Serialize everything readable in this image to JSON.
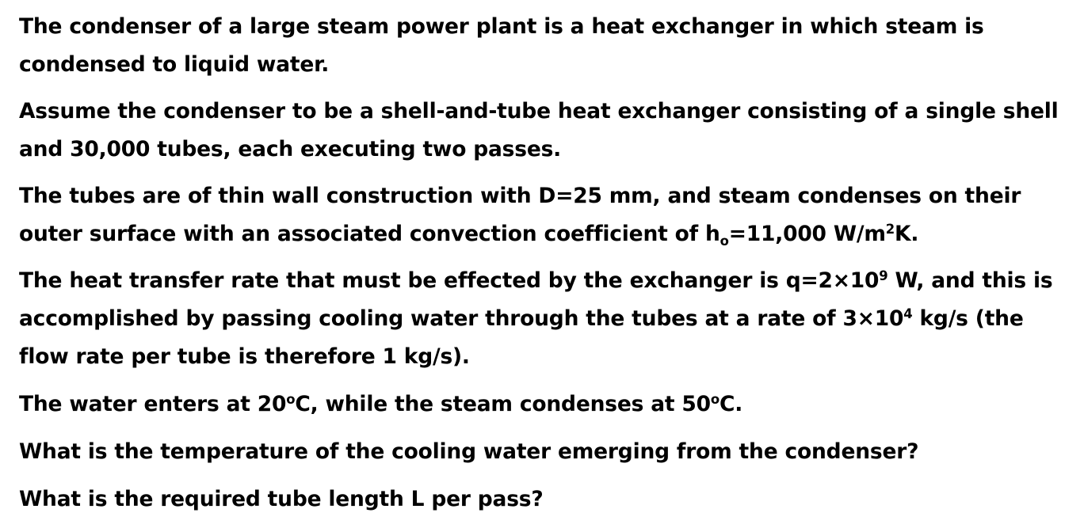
{
  "paragraphs": {
    "p1": "The condenser of a large steam power plant is a heat exchanger in which steam is condensed to liquid water.",
    "p2": "Assume the condenser to be a shell-and-tube heat exchanger consisting of a single shell and 30,000 tubes, each executing two passes.",
    "p3": {
      "part1": "The tubes are of thin wall construction with D=25 mm, and steam condenses on their outer surface with an associated convection coefficient of h",
      "sub1": "o",
      "part2": "=11,000 W/m",
      "sup1": "2",
      "part3": "K."
    },
    "p4": {
      "part1": "The heat transfer rate that must be effected by the exchanger is q=2×10",
      "sup1": "9",
      "part2": " W, and this is accomplished by passing cooling water through the tubes at a rate of 3×10",
      "sup2": "4",
      "part3": " kg/s (the flow rate per tube is therefore 1 kg/s)."
    },
    "p5": {
      "part1": "The water enters at 20",
      "sup1": "o",
      "part2": "C, while the steam condenses at 50",
      "sup2": "o",
      "part3": "C."
    },
    "p6": "What is the temperature of the cooling water emerging from the condenser?",
    "p7": "What is the required tube length L per pass?"
  }
}
